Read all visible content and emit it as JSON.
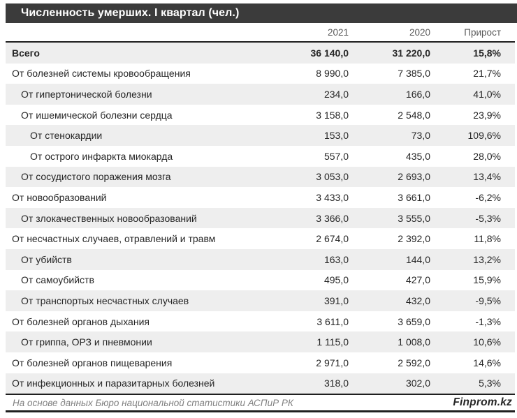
{
  "header": {
    "title": "Численность умерших. I квартал (чел.)"
  },
  "colors": {
    "title_bar": "#3b3b3b",
    "zebra": "#eeeeee",
    "rule": "#1f1f1f",
    "header_text": "#595959",
    "body_text": "#262626",
    "footer_text": "#808080"
  },
  "chart_data": {
    "type": "table",
    "title": "Численность умерших. I квартал (чел.)",
    "columns": [
      "2021",
      "2020",
      "Прирост"
    ],
    "rows": [
      {
        "label": "Всего",
        "indent": 0,
        "bold": true,
        "y2021": "36 140,0",
        "y2020": "31 220,0",
        "growth": "15,8%"
      },
      {
        "label": "От болезней системы кровообращения",
        "indent": 0,
        "bold": false,
        "y2021": "8 990,0",
        "y2020": "7 385,0",
        "growth": "21,7%"
      },
      {
        "label": "От гипертонической болезни",
        "indent": 1,
        "bold": false,
        "y2021": "234,0",
        "y2020": "166,0",
        "growth": "41,0%"
      },
      {
        "label": "От ишемической болезни сердца",
        "indent": 1,
        "bold": false,
        "y2021": "3 158,0",
        "y2020": "2 548,0",
        "growth": "23,9%"
      },
      {
        "label": "От стенокардии",
        "indent": 2,
        "bold": false,
        "y2021": "153,0",
        "y2020": "73,0",
        "growth": "109,6%"
      },
      {
        "label": "От острого инфаркта миокарда",
        "indent": 2,
        "bold": false,
        "y2021": "557,0",
        "y2020": "435,0",
        "growth": "28,0%"
      },
      {
        "label": "От сосудистого поражения мозга",
        "indent": 1,
        "bold": false,
        "y2021": "3 053,0",
        "y2020": "2 693,0",
        "growth": "13,4%"
      },
      {
        "label": "От новообразований",
        "indent": 0,
        "bold": false,
        "y2021": "3 433,0",
        "y2020": "3 661,0",
        "growth": "-6,2%"
      },
      {
        "label": "От злокачественных новообразований",
        "indent": 1,
        "bold": false,
        "y2021": "3 366,0",
        "y2020": "3 555,0",
        "growth": "-5,3%"
      },
      {
        "label": "От несчастных случаев, отравлений и травм",
        "indent": 0,
        "bold": false,
        "y2021": "2 674,0",
        "y2020": "2 392,0",
        "growth": "11,8%"
      },
      {
        "label": "От убийств",
        "indent": 1,
        "bold": false,
        "y2021": "163,0",
        "y2020": "144,0",
        "growth": "13,2%"
      },
      {
        "label": "От самоубийств",
        "indent": 1,
        "bold": false,
        "y2021": "495,0",
        "y2020": "427,0",
        "growth": "15,9%"
      },
      {
        "label": "От транспортых несчастных случаев",
        "indent": 1,
        "bold": false,
        "y2021": "391,0",
        "y2020": "432,0",
        "growth": "-9,5%"
      },
      {
        "label": "От болезней органов дыхания",
        "indent": 0,
        "bold": false,
        "y2021": "3 611,0",
        "y2020": "3 659,0",
        "growth": "-1,3%"
      },
      {
        "label": "От гриппа, ОРЗ и пневмонии",
        "indent": 1,
        "bold": false,
        "y2021": "1 115,0",
        "y2020": "1 008,0",
        "growth": "10,6%"
      },
      {
        "label": "От болезней органов пищеварения",
        "indent": 0,
        "bold": false,
        "y2021": "2 971,0",
        "y2020": "2 592,0",
        "growth": "14,6%"
      },
      {
        "label": "От инфекционных и паразитарных болезней",
        "indent": 0,
        "bold": false,
        "y2021": "318,0",
        "y2020": "302,0",
        "growth": "5,3%"
      }
    ]
  },
  "footer": {
    "source": "На основе данных Бюро национальной статистики АСПиР РК",
    "brand": "Finprom.kz"
  }
}
